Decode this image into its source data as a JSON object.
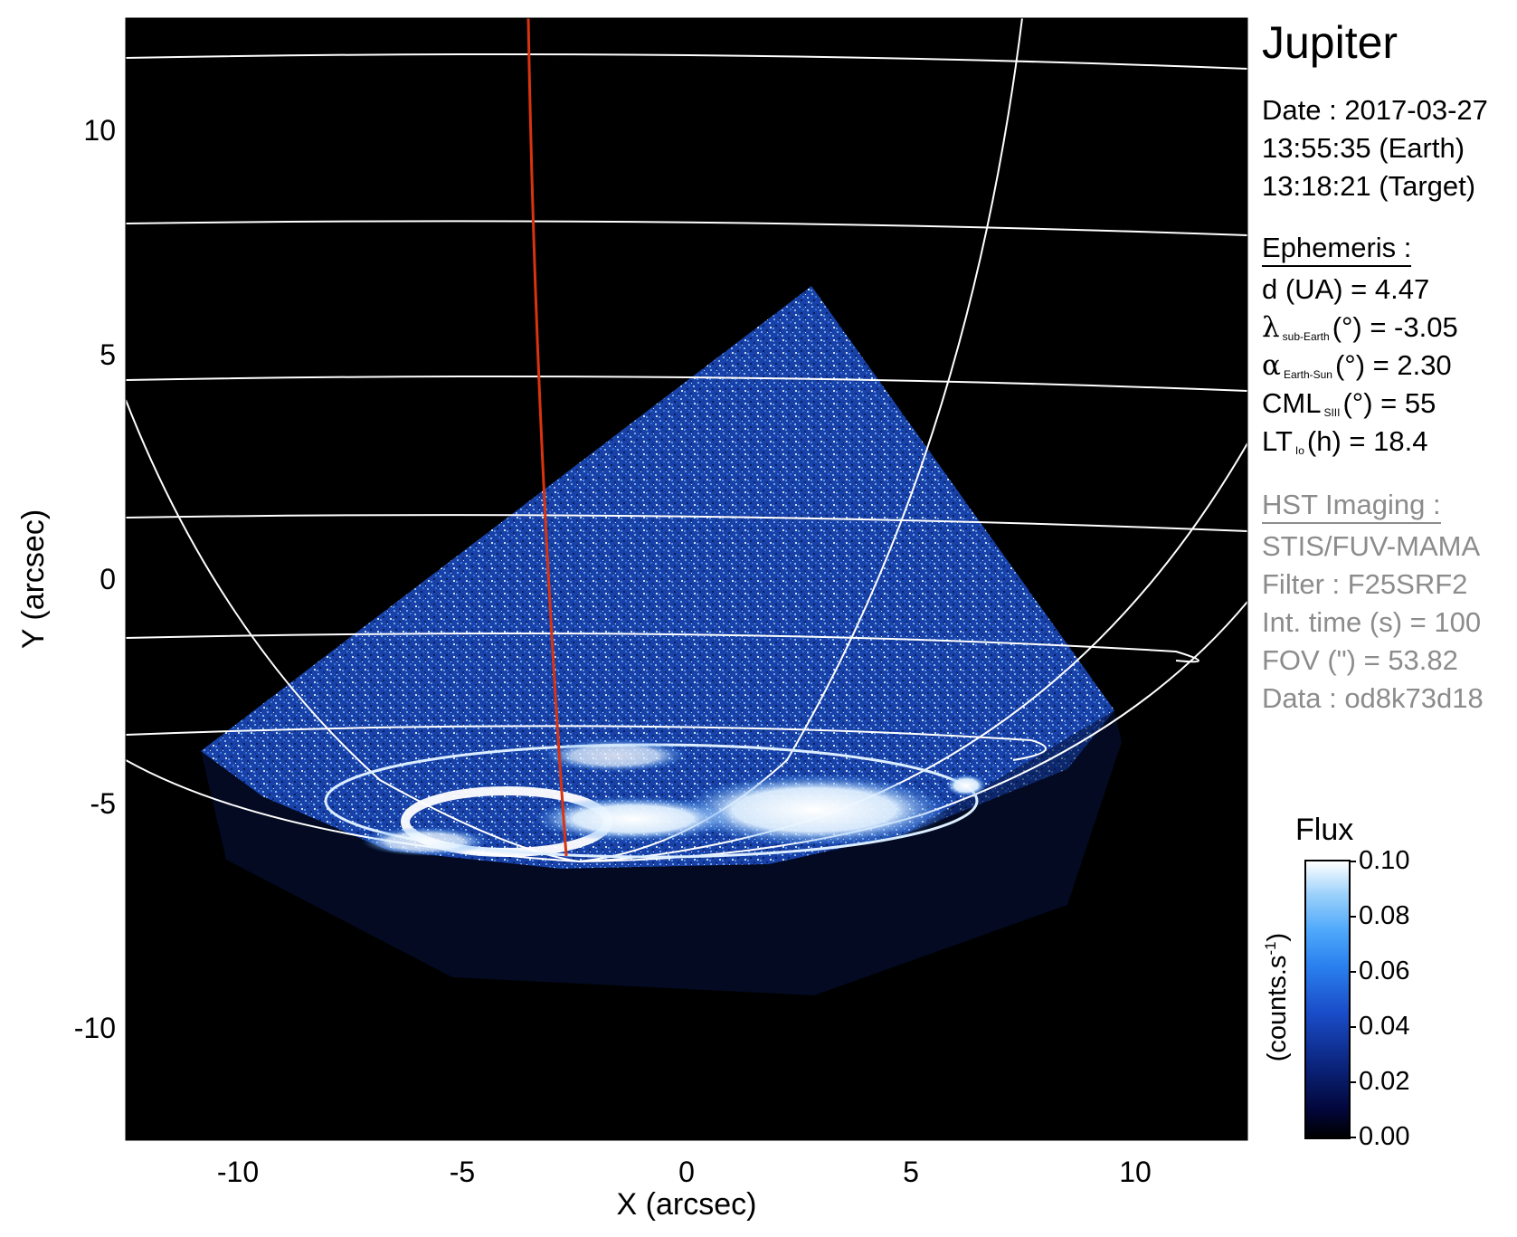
{
  "chart_data": {
    "type": "heatmap",
    "title": "Jupiter",
    "xlabel": "X (arcsec)",
    "ylabel": "Y (arcsec)",
    "xlim": [
      -12.5,
      12.5
    ],
    "ylim": [
      -12.5,
      12.5
    ],
    "x_ticks": [
      -10,
      -5,
      0,
      5,
      10
    ],
    "y_ticks": [
      -10,
      -5,
      0,
      5,
      10
    ],
    "x_tick_labels": [
      "-10",
      "-5",
      "0",
      "5",
      "10"
    ],
    "y_tick_labels": [
      "-10",
      "-5",
      "0",
      "5",
      "10"
    ],
    "colorbar": {
      "title": "Flux",
      "unit": "(counts.s",
      "unit_sup": "-1",
      "unit_close": ")",
      "min": 0.0,
      "max": 0.1,
      "ticks": [
        0.0,
        0.02,
        0.04,
        0.06,
        0.08,
        0.1
      ],
      "tick_labels": [
        "0.00",
        "0.02",
        "0.04",
        "0.06",
        "0.08",
        "0.10"
      ],
      "colormap_colors": [
        "#000000",
        "#02063a",
        "#0a2278",
        "#1a4cc8",
        "#2a80ee",
        "#4fa8fb",
        "#9bd1fb",
        "#ffffff"
      ]
    },
    "colors": {
      "background": "#000000",
      "grid_lines": "#ffffff",
      "meridian": "#d9330f",
      "emission": "#1e56d0",
      "auroral_oval": "#ffffff"
    }
  },
  "panel": {
    "title": "Jupiter",
    "date_line": "Date : 2017-03-27",
    "earth_time": "13:55:35 (Earth)",
    "target_time": "13:18:21 (Target)",
    "ephemeris_header": "Ephemeris :",
    "distance": "d (UA)    = 4.47",
    "lat_symbol": "λ",
    "lat_sub": "sub-Earth",
    "lat_rest": "(°) = -3.05",
    "phase_symbol": "α",
    "phase_sub": "Earth-Sun",
    "phase_rest": "(°) = 2.30",
    "cml_symbol": "CML",
    "cml_sub": "SIII",
    "cml_rest": "(°) = 55",
    "lt_symbol": "LT",
    "lt_sub": "Io",
    "lt_rest": "(h) = 18.4",
    "hst_header": "HST Imaging :",
    "instrument": "STIS/FUV-MAMA",
    "filter": "Filter : F25SRF2",
    "int_time": "Int. time (s) = 100",
    "fov": "FOV (\") = 53.82",
    "data_id": "Data : od8k73d18"
  }
}
